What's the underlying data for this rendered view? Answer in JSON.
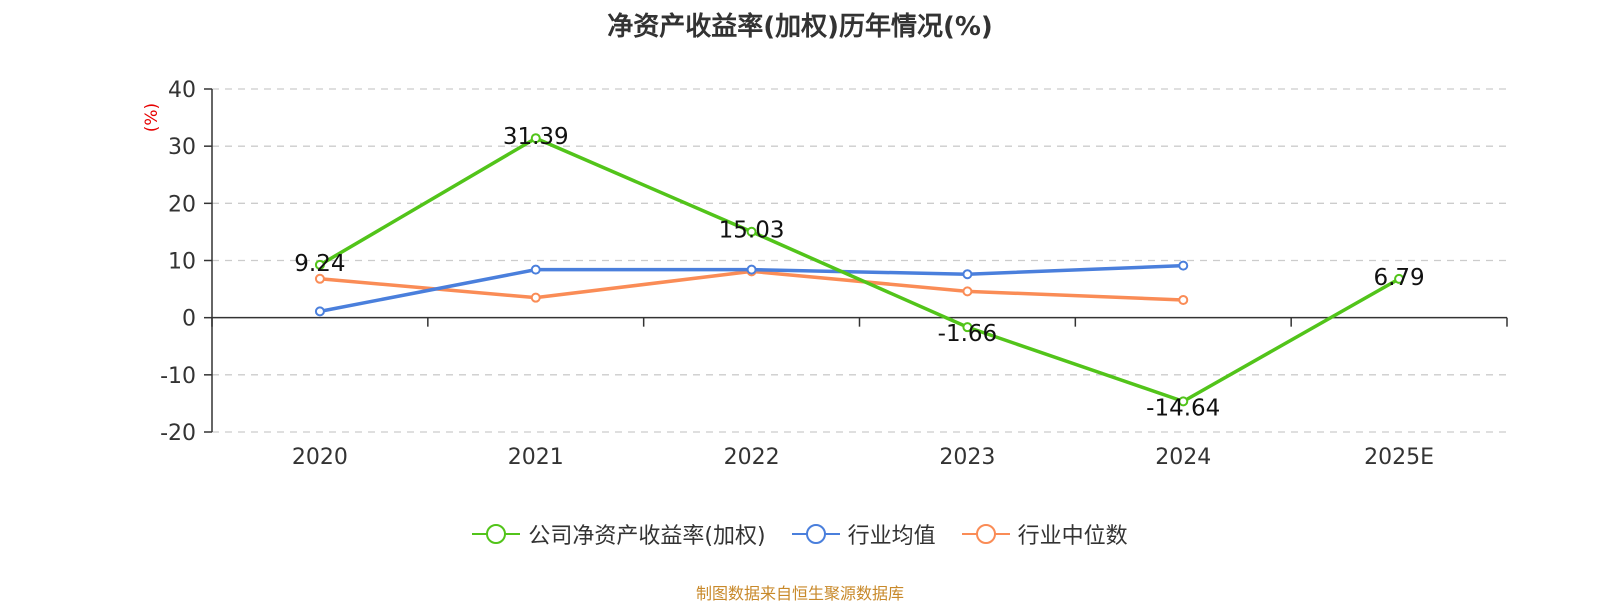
{
  "title": "净资产收益率(加权)历年情况(%)",
  "source_note": "制图数据来自恒生聚源数据库",
  "colors": {
    "source_note": "#c8892a",
    "ylabel": "#e60000",
    "axis": "#333333",
    "grid": "#cccccc"
  },
  "chart_data": {
    "type": "line",
    "title": "净资产收益率(加权)历年情况(%)",
    "xlabel": "",
    "ylabel": "(%)",
    "categories": [
      "2020",
      "2021",
      "2022",
      "2023",
      "2024",
      "2025E"
    ],
    "ylim": [
      -20,
      40
    ],
    "yticks": [
      40,
      30,
      20,
      10,
      0,
      -10,
      -20
    ],
    "grid": true,
    "legend_position": "bottom",
    "series": [
      {
        "name": "公司净资产收益率(加权)",
        "color": "#52c41a",
        "values": [
          9.24,
          31.39,
          15.03,
          -1.66,
          -14.64,
          6.79
        ],
        "data_labels": [
          "9.24",
          "31.39",
          "15.03",
          "-1.66",
          "-14.64",
          "6.79"
        ]
      },
      {
        "name": "行业均值",
        "color": "#4a7fdc",
        "values": [
          1.1,
          8.4,
          8.4,
          7.6,
          9.1,
          null
        ],
        "data_labels": null
      },
      {
        "name": "行业中位数",
        "color": "#fa8c56",
        "values": [
          6.8,
          3.5,
          8.1,
          4.6,
          3.1,
          null
        ],
        "data_labels": null
      }
    ]
  }
}
